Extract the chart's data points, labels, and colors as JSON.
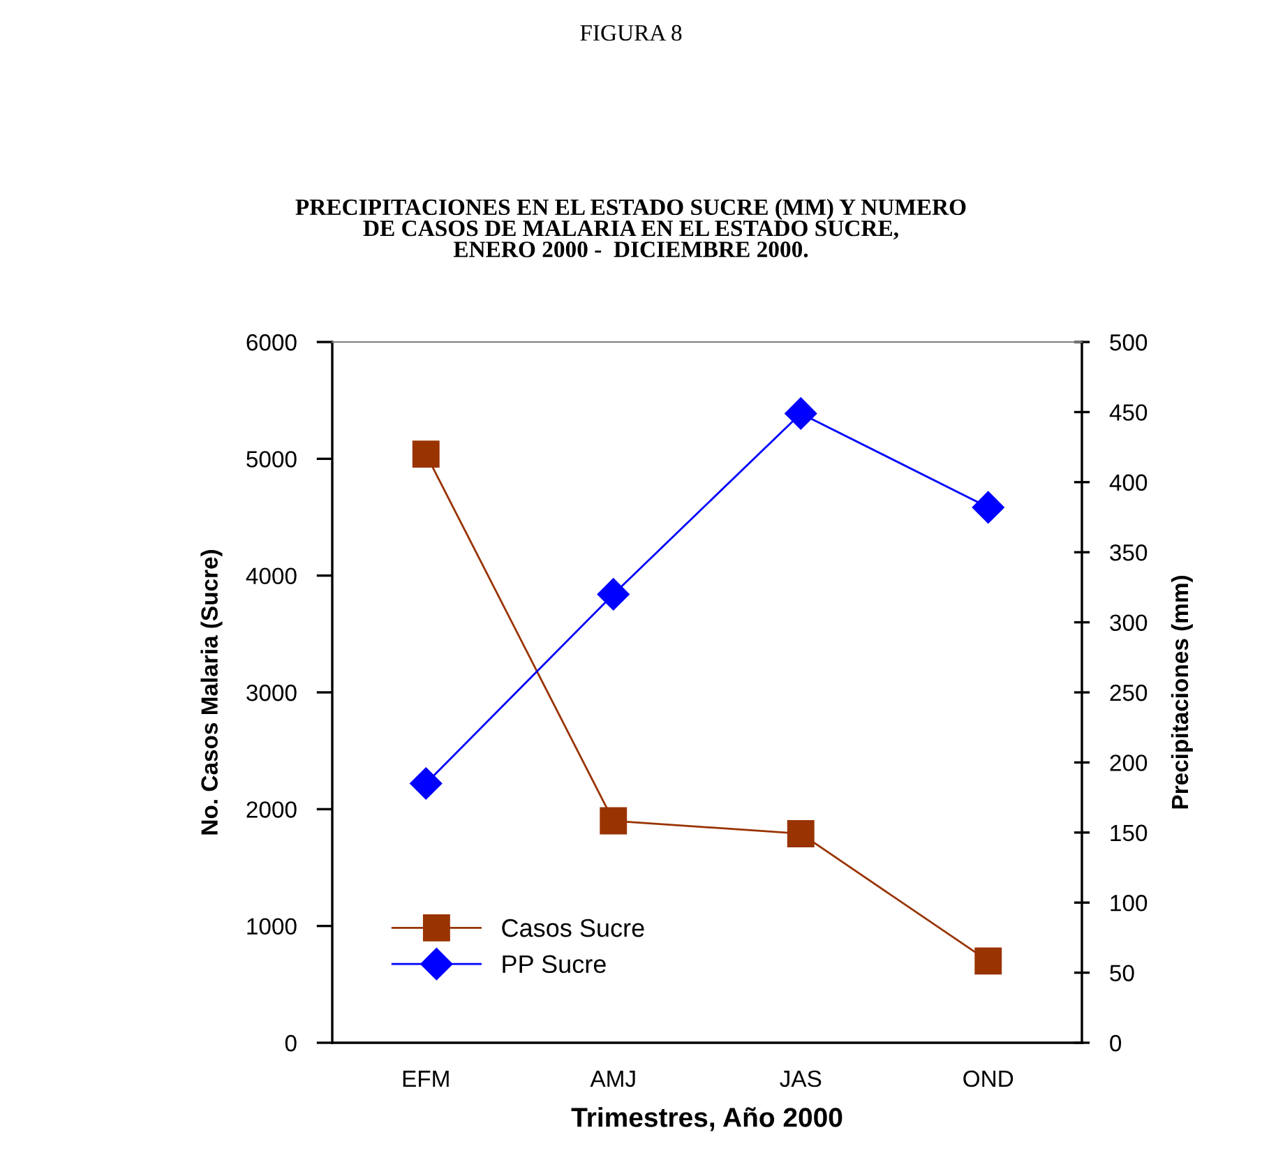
{
  "chart_data": {
    "type": "line",
    "title": "FIGURA 8",
    "subtitle": "PRECIPITACIONES EN EL ESTADO SUCRE (MM) Y NUMERO\nDE CASOS DE MALARIA EN EL ESTADO SUCRE,\nENERO 2000 -  DICIEMBRE 2000.",
    "xlabel": "Trimestres, Año 2000",
    "ylabel": "No. Casos Malaria (Sucre)",
    "y2label": "Precipitaciones (mm)",
    "categories": [
      "EFM",
      "AMJ",
      "JAS",
      "OND"
    ],
    "series": [
      {
        "name": "Casos Sucre",
        "color": "#993300",
        "marker": "square",
        "values": [
          5040,
          1900,
          1790,
          700
        ]
      },
      {
        "name": "PP Sucre",
        "color": "#0000ff",
        "marker": "diamond",
        "axis": "y2",
        "values": [
          185,
          320,
          449,
          382
        ]
      }
    ],
    "ylim": [
      0,
      6000
    ],
    "yticks": [
      0,
      1000,
      2000,
      3000,
      4000,
      5000,
      6000
    ],
    "y2lim": [
      0,
      500
    ],
    "y2ticks": [
      0,
      50,
      100,
      150,
      200,
      250,
      300,
      350,
      400,
      450,
      500
    ],
    "grid": false,
    "legend": "bottom left"
  }
}
